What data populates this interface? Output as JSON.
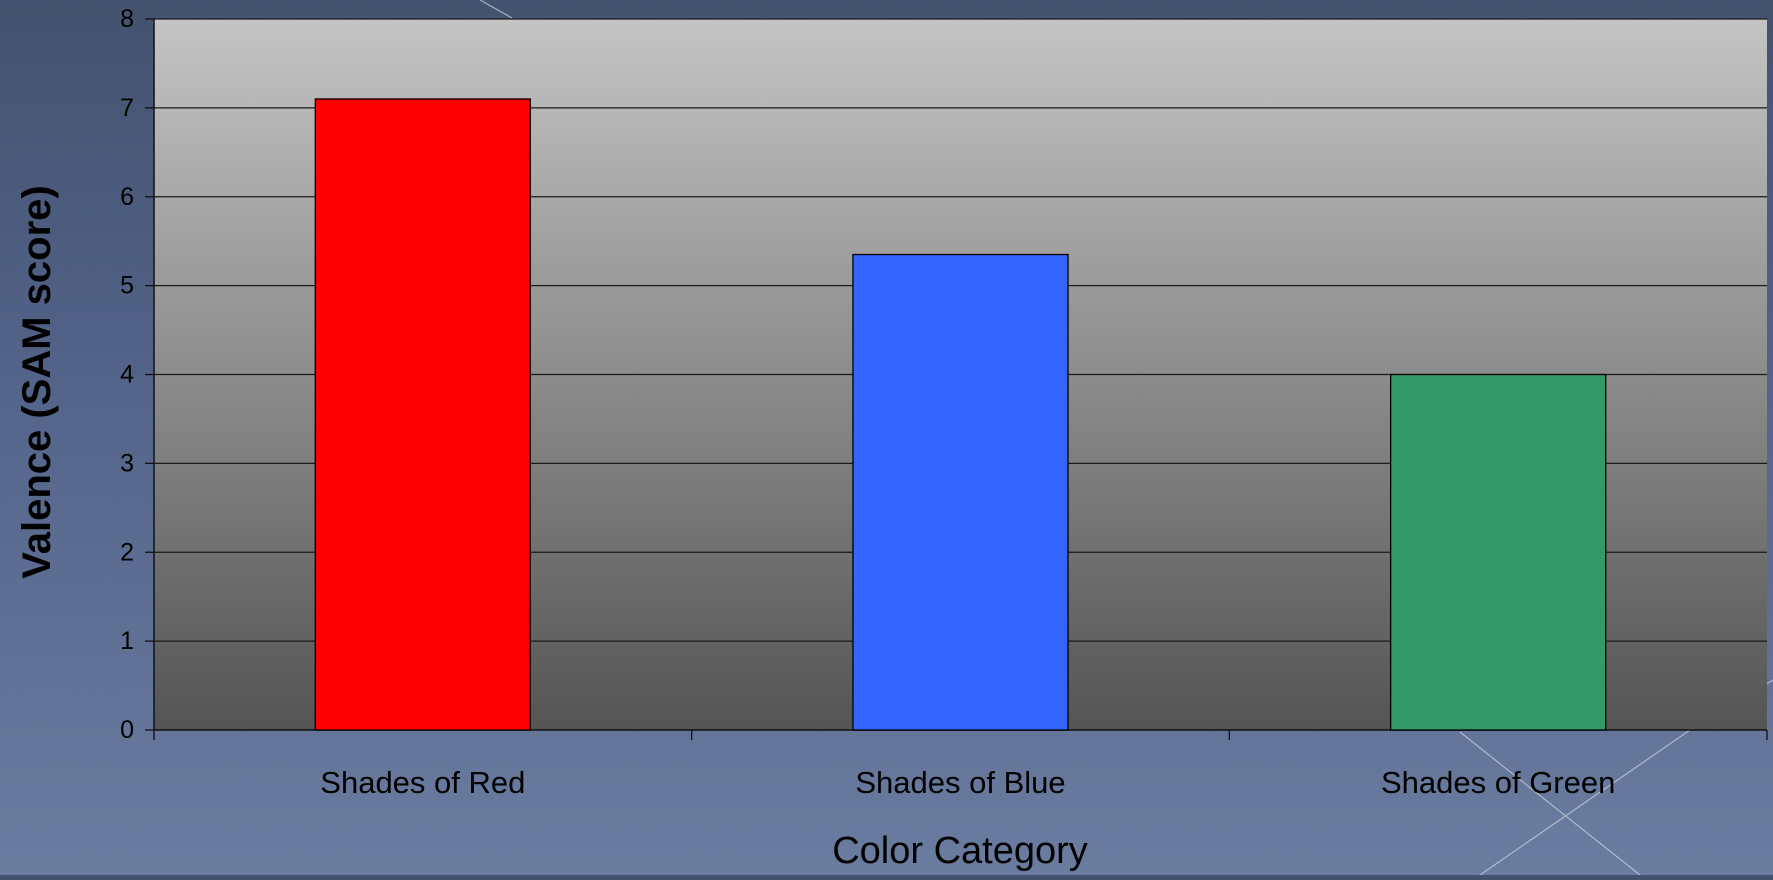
{
  "chart_data": {
    "type": "bar",
    "title": "",
    "xlabel": "Color Category",
    "ylabel": "Valence (SAM score)",
    "categories": [
      "Shades of Red",
      "Shades of Blue",
      "Shades of Green"
    ],
    "values": [
      7.1,
      5.35,
      4.0
    ],
    "bar_colors": [
      "#ff0000",
      "#3366ff",
      "#339966"
    ],
    "ylim": [
      0,
      8
    ],
    "yticks": [
      "0",
      "1",
      "2",
      "3",
      "4",
      "5",
      "6",
      "7",
      "8"
    ],
    "grid": true,
    "legend": "none"
  },
  "colors": {
    "plot_top": "#c2c2c2",
    "plot_bottom": "#545454",
    "gridline": "#1a1a1a",
    "text": "#000000"
  }
}
